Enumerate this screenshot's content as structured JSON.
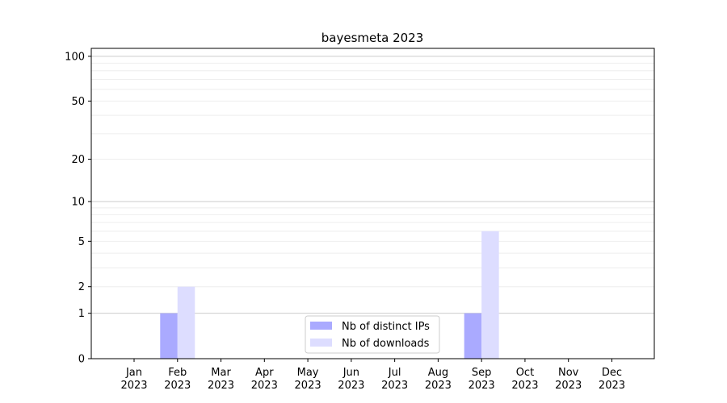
{
  "chart_data": {
    "type": "bar",
    "title": "bayesmeta 2023",
    "xlabel": "",
    "ylabel": "",
    "y_scale": "symlog (log of 1+y)",
    "ylim": [
      0,
      113
    ],
    "yticks": [
      0,
      1,
      2,
      5,
      10,
      20,
      50,
      100
    ],
    "ytick_labels": [
      "0",
      "1",
      "2",
      "5",
      "10",
      "20",
      "50",
      "100"
    ],
    "grid": true,
    "legend_position": "bottom-center",
    "categories": [
      "Jan\n2023",
      "Feb\n2023",
      "Mar\n2023",
      "Apr\n2023",
      "May\n2023",
      "Jun\n2023",
      "Jul\n2023",
      "Aug\n2023",
      "Sep\n2023",
      "Oct\n2023",
      "Nov\n2023",
      "Dec\n2023"
    ],
    "category_months": [
      "Jan",
      "Feb",
      "Mar",
      "Apr",
      "May",
      "Jun",
      "Jul",
      "Aug",
      "Sep",
      "Oct",
      "Nov",
      "Dec"
    ],
    "category_year": "2023",
    "series": [
      {
        "name": "Nb of distinct IPs",
        "color": "#aaaaff",
        "values": [
          0,
          1,
          0,
          0,
          0,
          0,
          0,
          0,
          1,
          0,
          0,
          0
        ]
      },
      {
        "name": "Nb of downloads",
        "color": "#ddddff",
        "values": [
          0,
          2,
          0,
          0,
          0,
          0,
          0,
          0,
          6,
          0,
          0,
          0
        ]
      }
    ]
  }
}
